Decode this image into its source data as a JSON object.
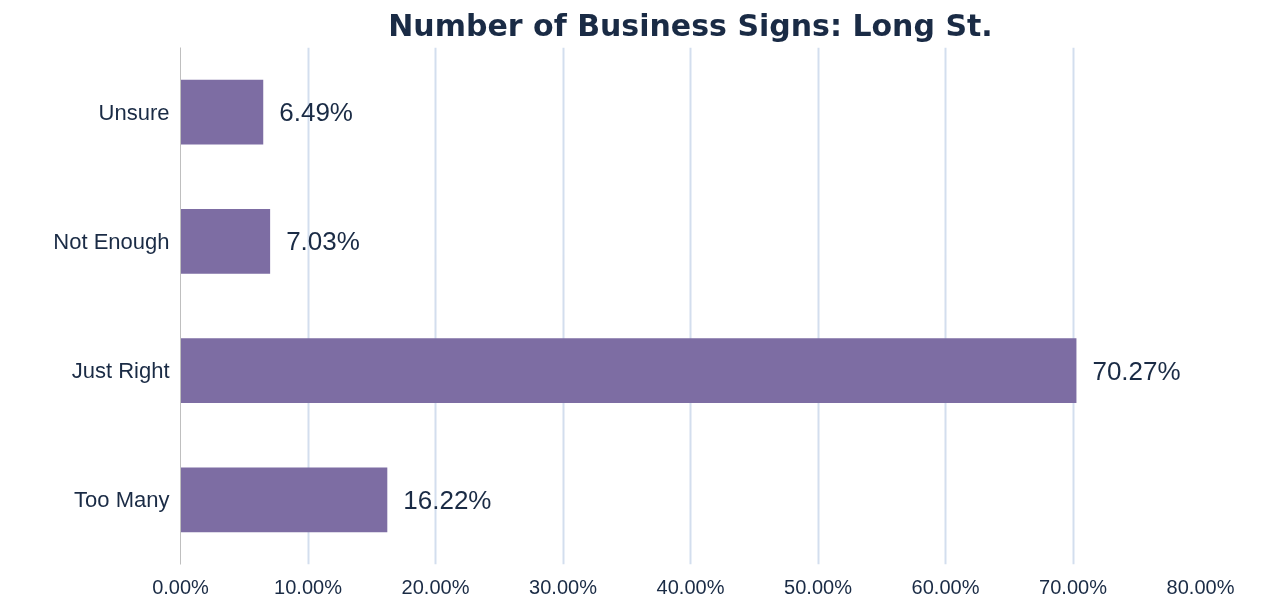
{
  "chart_data": {
    "type": "bar",
    "orientation": "horizontal",
    "title": "Number of Business Signs: Long St.",
    "categories": [
      "Unsure",
      "Not Enough",
      "Just Right",
      "Too Many"
    ],
    "values": [
      6.49,
      7.03,
      70.27,
      16.22
    ],
    "value_labels": [
      "6.49%",
      "7.03%",
      "70.27%",
      "16.22%"
    ],
    "color": "#7d6da3",
    "xlim": [
      0,
      80
    ],
    "xticks": [
      {
        "value": 0,
        "label": "0.00%"
      },
      {
        "value": 10,
        "label": "10.00%"
      },
      {
        "value": 20,
        "label": "20.00%"
      },
      {
        "value": 30,
        "label": "30.00%"
      },
      {
        "value": 40,
        "label": "40.00%"
      },
      {
        "value": 50,
        "label": "50.00%"
      },
      {
        "value": 60,
        "label": "60.00%"
      },
      {
        "value": 70,
        "label": "70.00%"
      },
      {
        "value": 80,
        "label": "80.00%"
      }
    ],
    "grid": "x"
  }
}
